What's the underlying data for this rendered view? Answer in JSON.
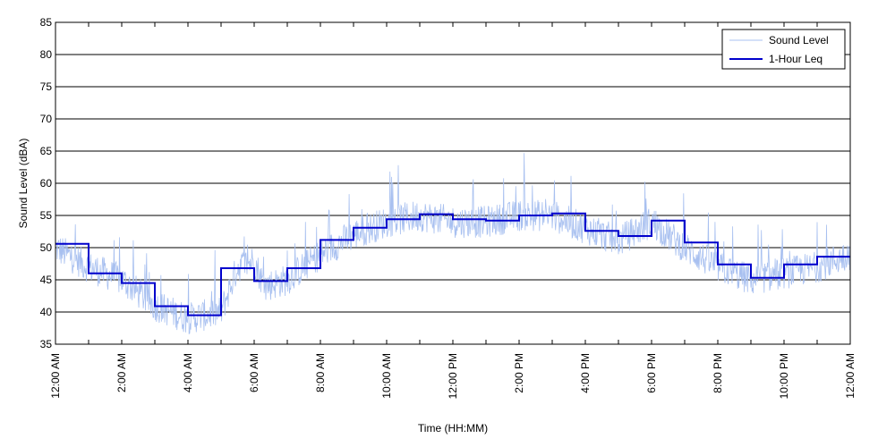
{
  "chart_data": {
    "type": "line",
    "xlabel": "Time (HH:MM)",
    "ylabel": "Sound Level (dBA)",
    "ylim": [
      35,
      85
    ],
    "yticks": [
      35,
      40,
      45,
      50,
      55,
      60,
      65,
      70,
      75,
      80,
      85
    ],
    "xlim": [
      0,
      24
    ],
    "xtick_labels": [
      "12:00 AM",
      "2:00 AM",
      "4:00 AM",
      "6:00 AM",
      "8:00 AM",
      "10:00 AM",
      "12:00 PM",
      "2:00 PM",
      "4:00 PM",
      "6:00 PM",
      "8:00 PM",
      "10:00 PM",
      "12:00 AM"
    ],
    "grid": "horizontal",
    "legend_position": "top-right",
    "series": [
      {
        "name": "Sound Level",
        "color": "#a8c0f0",
        "style": "thin",
        "base_trend": [
          [
            0,
            50
          ],
          [
            1,
            47
          ],
          [
            2,
            45
          ],
          [
            3,
            41
          ],
          [
            4,
            39
          ],
          [
            5,
            40
          ],
          [
            5.5,
            47
          ],
          [
            6,
            48
          ],
          [
            6.3,
            44
          ],
          [
            7,
            45
          ],
          [
            8,
            49
          ],
          [
            9,
            52
          ],
          [
            10,
            54
          ],
          [
            11,
            55
          ],
          [
            12,
            54
          ],
          [
            13,
            54
          ],
          [
            14,
            55
          ],
          [
            15,
            55
          ],
          [
            16,
            53
          ],
          [
            17,
            51
          ],
          [
            18,
            54
          ],
          [
            19,
            50
          ],
          [
            20,
            47
          ],
          [
            21,
            45
          ],
          [
            22,
            46
          ],
          [
            23,
            47
          ],
          [
            24,
            49
          ]
        ]
      },
      {
        "name": "1-Hour Leq",
        "color": "#0000cc",
        "style": "step",
        "values": [
          50.6,
          46.0,
          44.5,
          40.9,
          39.5,
          46.8,
          44.8,
          46.8,
          51.2,
          53.1,
          54.4,
          55.2,
          54.4,
          54.2,
          55.0,
          55.3,
          52.6,
          51.8,
          54.2,
          50.8,
          47.4,
          45.3,
          47.4,
          48.6
        ]
      }
    ]
  }
}
